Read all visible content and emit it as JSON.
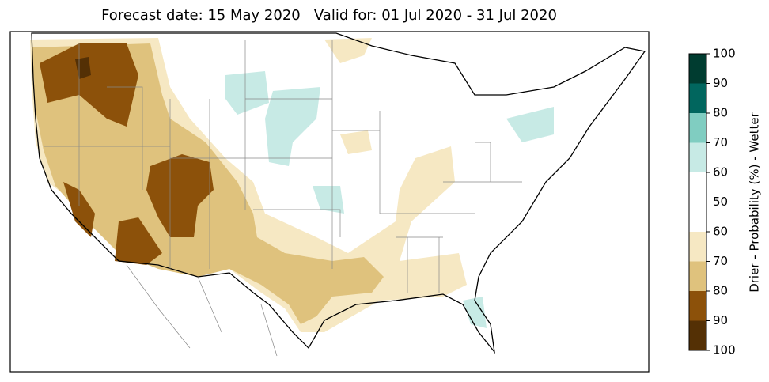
{
  "title": "Forecast date: 15 May 2020   Valid for: 01 Jul 2020 - 31 Jul 2020",
  "colorbar": {
    "label": "Drier - Probability (%) - Wetter",
    "ticks": [
      100,
      90,
      80,
      70,
      60,
      50,
      60,
      70,
      80,
      90,
      100
    ],
    "colors": [
      "#003c30",
      "#01665e",
      "#80cdc1",
      "#c7eae5",
      "#ffffff",
      "#ffffff",
      "#f6e8c3",
      "#dfc27d",
      "#8c510a",
      "#543005"
    ]
  }
}
